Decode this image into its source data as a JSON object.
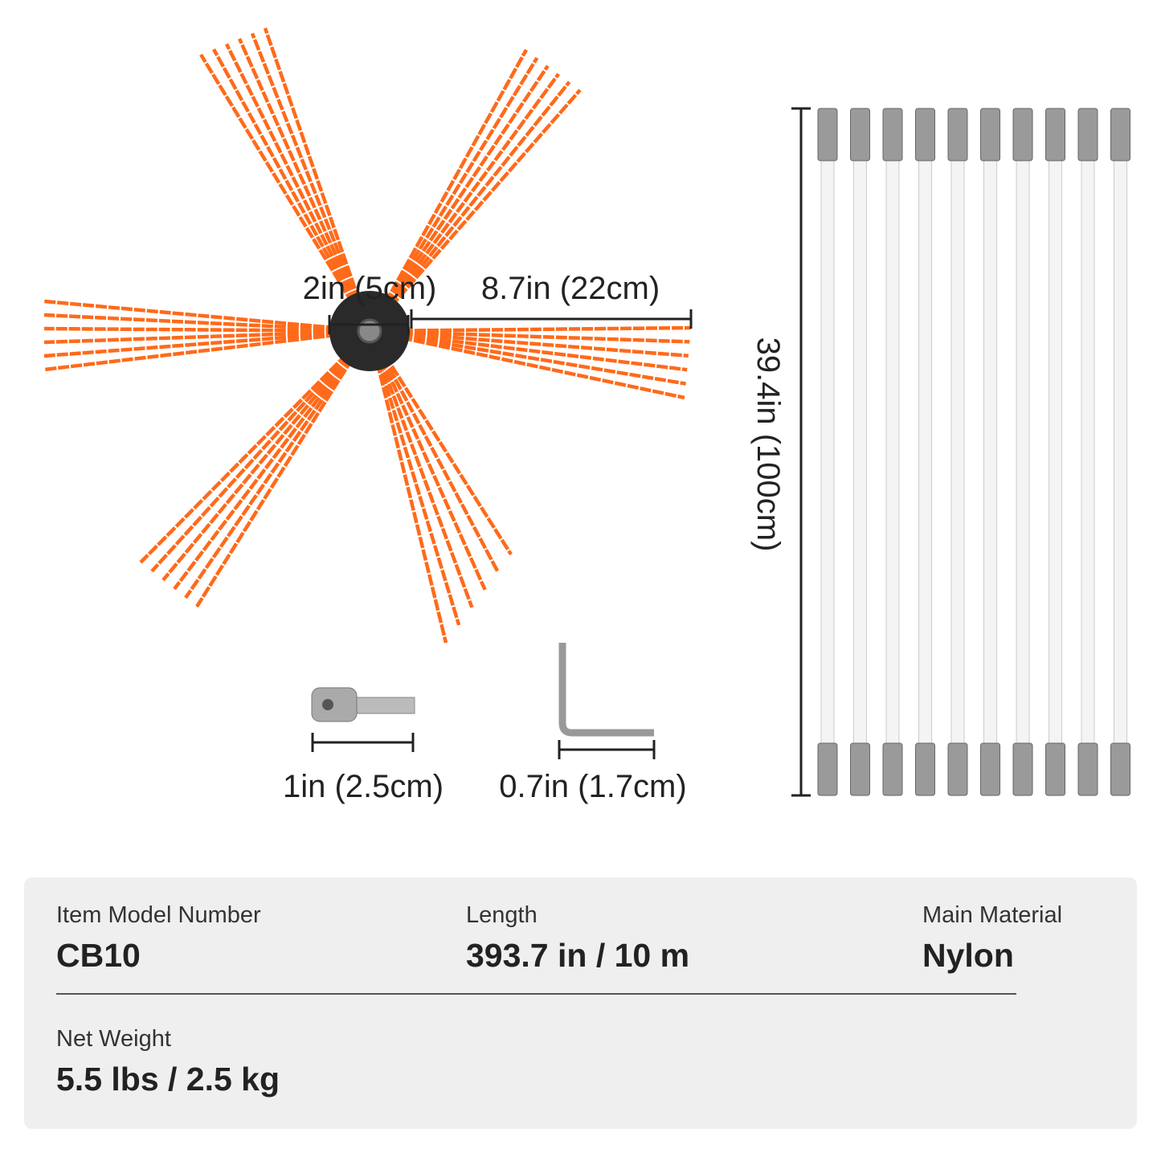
{
  "dimensions": {
    "hub": "2in (5cm)",
    "bristle": "8.7in (22cm)",
    "rod": "39.4in (100cm)",
    "adapter": "1in (2.5cm)",
    "key": "0.7in (1.7cm)"
  },
  "specs": [
    {
      "label": "Item Model Number",
      "value": "CB10"
    },
    {
      "label": "Length",
      "value": "393.7 in / 10 m"
    },
    {
      "label": "Main Material",
      "value": "Nylon"
    },
    {
      "label": "Net Weight",
      "value": "5.5 lbs / 2.5 kg"
    }
  ]
}
